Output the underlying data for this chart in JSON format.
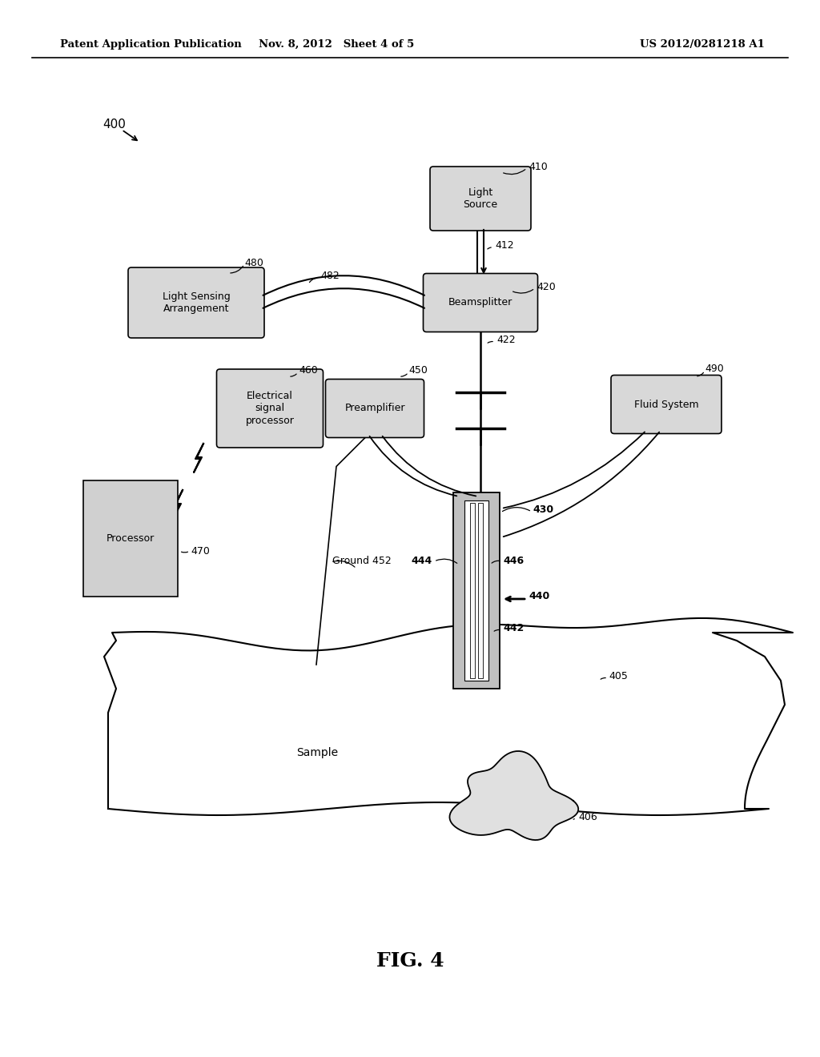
{
  "bg_color": "#ffffff",
  "header_left": "Patent Application Publication",
  "header_mid": "Nov. 8, 2012   Sheet 4 of 5",
  "header_right": "US 2012/0281218 A1",
  "fig_label": "FIG. 4",
  "diagram_label": "400"
}
